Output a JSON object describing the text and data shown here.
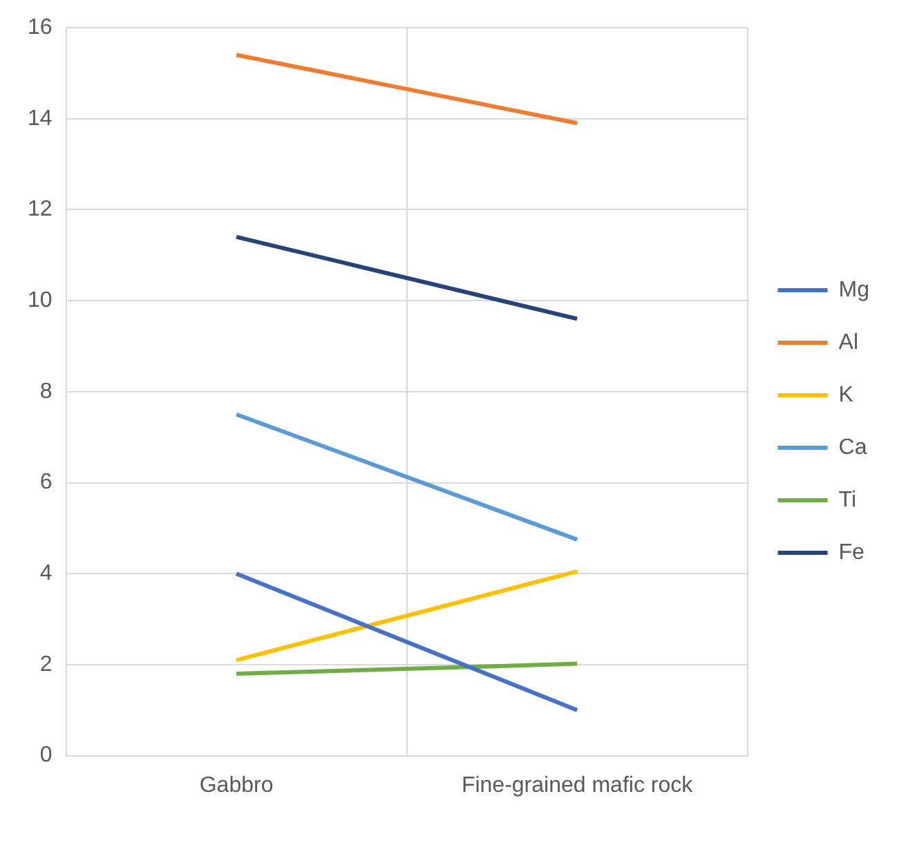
{
  "chart_data": {
    "type": "line",
    "categories": [
      "Gabbro",
      "Fine-grained mafic rock"
    ],
    "series": [
      {
        "name": "Mg",
        "color": "#4472c4",
        "values": [
          4.0,
          1.0
        ]
      },
      {
        "name": "Al",
        "color": "#ed7d31",
        "values": [
          15.4,
          13.9
        ]
      },
      {
        "name": "K",
        "color": "#ffc000",
        "values": [
          2.1,
          4.05
        ]
      },
      {
        "name": "Ca",
        "color": "#5b9bd5",
        "values": [
          7.5,
          4.75
        ]
      },
      {
        "name": "Ti",
        "color": "#70ad47",
        "values": [
          1.8,
          2.02
        ]
      },
      {
        "name": "Fe",
        "color": "#264478",
        "values": [
          11.4,
          9.6
        ]
      }
    ],
    "ylim": [
      0,
      16
    ],
    "yticks": [
      0,
      2,
      4,
      6,
      8,
      10,
      12,
      14,
      16
    ],
    "grid": true,
    "legend": "right",
    "marker": "none",
    "line_style": "solid"
  }
}
